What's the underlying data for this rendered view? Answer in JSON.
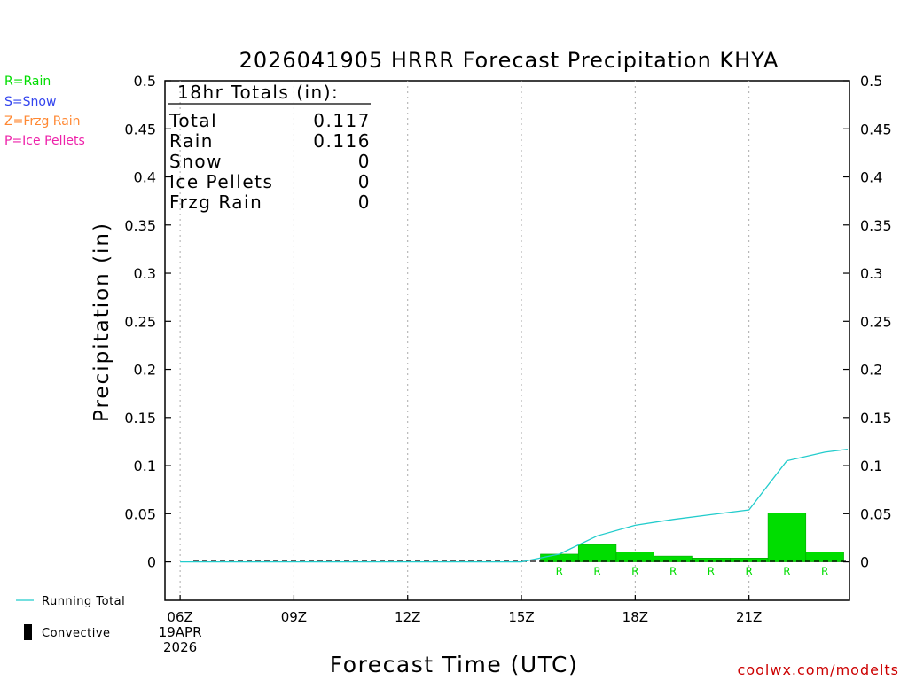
{
  "colors": {
    "rain": "#00dd00",
    "snow": "#3344ee",
    "frzg": "#ff8833",
    "ice": "#ee22aa",
    "running_total": "#22cccc",
    "convective": "#000000",
    "credit": "#cc0000"
  },
  "legend_left": {
    "rain": "R=Rain",
    "snow": "S=Snow",
    "frzg": "Z=Frzg Rain",
    "ice": "P=Ice Pellets"
  },
  "legend_bottom": {
    "running_total": "Running Total",
    "convective": "Convective"
  },
  "totals_box": {
    "header": "18hr Totals (in):",
    "rows": [
      {
        "label": "Total",
        "value": "0.117"
      },
      {
        "label": "Rain",
        "value": "0.116"
      },
      {
        "label": "Snow",
        "value": "0"
      },
      {
        "label": "Ice Pellets",
        "value": "0"
      },
      {
        "label": "Frzg Rain",
        "value": "0"
      }
    ]
  },
  "credit": "coolwx.com/modelts",
  "chart_data": {
    "type": "bar",
    "title": "2026041905 HRRR Forecast Precipitation KHYA",
    "xlabel": "Forecast Time (UTC)",
    "ylabel": "Precipitation (in)",
    "ylim": [
      -0.04,
      0.5
    ],
    "yticks": [
      0,
      0.05,
      0.1,
      0.15,
      0.2,
      0.25,
      0.3,
      0.35,
      0.4,
      0.45,
      0.5
    ],
    "ytick_labels": [
      "0",
      "0.05",
      "0.1",
      "0.15",
      "0.2",
      "0.25",
      "0.3",
      "0.35",
      "0.4",
      "0.45",
      "0.5"
    ],
    "xlim_hours": [
      5.6,
      23.65
    ],
    "xticks": [
      {
        "hour": 6,
        "label": "06Z",
        "sub": [
          "19APR",
          "2026"
        ]
      },
      {
        "hour": 9,
        "label": "09Z"
      },
      {
        "hour": 12,
        "label": "12Z"
      },
      {
        "hour": 15,
        "label": "15Z"
      },
      {
        "hour": 18,
        "label": "18Z"
      },
      {
        "hour": 21,
        "label": "21Z"
      }
    ],
    "grid": "vertical dotted",
    "hourly_precip": {
      "type_label": "R",
      "bars": [
        {
          "start": 15.5,
          "end": 16.5,
          "value": 0.008
        },
        {
          "start": 16.5,
          "end": 17.5,
          "value": 0.018
        },
        {
          "start": 17.5,
          "end": 18.5,
          "value": 0.01
        },
        {
          "start": 18.5,
          "end": 19.5,
          "value": 0.006
        },
        {
          "start": 19.5,
          "end": 20.5,
          "value": 0.004
        },
        {
          "start": 20.5,
          "end": 21.5,
          "value": 0.004
        },
        {
          "start": 21.5,
          "end": 22.5,
          "value": 0.051
        },
        {
          "start": 22.5,
          "end": 23.5,
          "value": 0.01
        }
      ]
    },
    "running_total": {
      "x": [
        6,
        7,
        8,
        9,
        10,
        11,
        12,
        13,
        14,
        15,
        16,
        17,
        18,
        19,
        20,
        21,
        22,
        23,
        23.6
      ],
      "y": [
        0,
        0,
        0,
        0,
        0,
        0,
        0,
        0,
        0,
        0,
        0.008,
        0.027,
        0.038,
        0.044,
        0.049,
        0.054,
        0.105,
        0.114,
        0.117
      ]
    }
  }
}
